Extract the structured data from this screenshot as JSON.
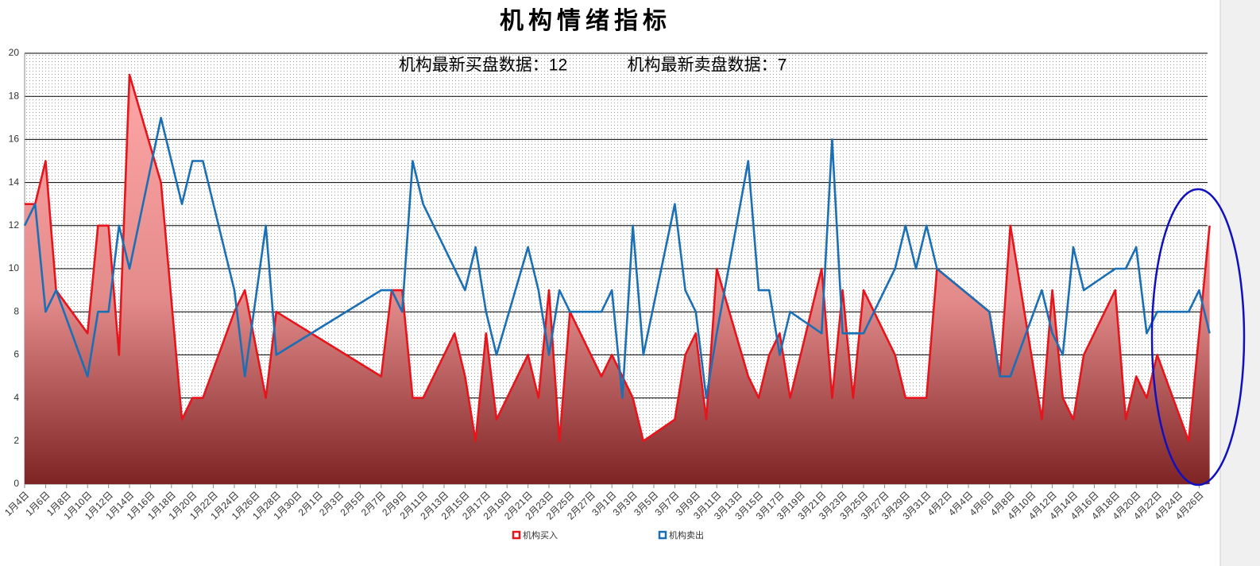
{
  "chart_data": {
    "type": "line",
    "title": "机构情绪指标",
    "annotations": [
      "机构最新买盘数据：12",
      "机构最新卖盘数据：7"
    ],
    "x": [
      "1月4日",
      "1月5日",
      "1月6日",
      "1月7日",
      "1月10日",
      "1月11日",
      "1月12日",
      "1月13日",
      "1月14日",
      "1月17日",
      "1月19日",
      "1月20日",
      "1月21日",
      "1月24日",
      "1月25日",
      "1月27日",
      "1月28日",
      "2月7日",
      "2月8日",
      "2月9日",
      "2月10日",
      "2月11日",
      "2月14日",
      "2月15日",
      "2月16日",
      "2月17日",
      "2月18日",
      "2月21日",
      "2月22日",
      "2月23日",
      "2月24日",
      "2月25日",
      "2月28日",
      "3月1日",
      "3月2日",
      "3月3日",
      "3月4日",
      "3月7日",
      "3月8日",
      "3月9日",
      "3月10日",
      "3月11日",
      "3月14日",
      "3月15日",
      "3月16日",
      "3月17日",
      "3月18日",
      "3月21日",
      "3月22日",
      "3月23日",
      "3月24日",
      "3月25日",
      "3月28日",
      "3月29日",
      "3月30日",
      "3月31日",
      "4月1日",
      "4月6日",
      "4月7日",
      "4月8日",
      "4月11日",
      "4月12日",
      "4月13日",
      "4月14日",
      "4月15日",
      "4月18日",
      "4月19日",
      "4月20日",
      "4月21日",
      "4月22日",
      "4月25日",
      "4月26日",
      "4月27日"
    ],
    "series": [
      {
        "name": "机构买入",
        "color": "#e8141b",
        "area": true,
        "values": [
          13,
          13,
          15,
          9,
          7,
          12,
          12,
          6,
          19,
          14,
          3,
          4,
          4,
          8,
          9,
          4,
          8,
          5,
          9,
          9,
          4,
          4,
          7,
          5,
          2,
          7,
          3,
          6,
          4,
          9,
          2,
          8,
          5,
          6,
          5,
          4,
          2,
          3,
          6,
          7,
          3,
          10,
          5,
          4,
          6,
          7,
          4,
          10,
          4,
          9,
          4,
          9,
          6,
          4,
          4,
          4,
          10,
          8,
          5,
          12,
          3,
          9,
          4,
          3,
          6,
          9,
          3,
          5,
          4,
          6,
          2,
          7,
          12
        ]
      },
      {
        "name": "机构卖出",
        "color": "#1a6fb5",
        "area": false,
        "values": [
          12,
          13,
          8,
          9,
          5,
          8,
          8,
          12,
          10,
          17,
          13,
          15,
          15,
          9,
          5,
          12,
          6,
          9,
          9,
          8,
          15,
          13,
          10,
          9,
          11,
          8,
          6,
          11,
          9,
          6,
          9,
          8,
          8,
          9,
          4,
          12,
          6,
          13,
          9,
          8,
          4,
          7,
          15,
          9,
          9,
          6,
          8,
          7,
          16,
          7,
          7,
          7,
          10,
          12,
          10,
          12,
          10,
          8,
          5,
          5,
          9,
          7,
          6,
          11,
          9,
          10,
          10,
          11,
          7,
          8,
          8,
          9,
          7
        ]
      }
    ],
    "xticks": [
      "1月4日",
      "1月6日",
      "1月8日",
      "1月10日",
      "1月12日",
      "1月14日",
      "1月16日",
      "1月18日",
      "1月20日",
      "1月22日",
      "1月24日",
      "1月26日",
      "1月28日",
      "1月30日",
      "2月1日",
      "2月3日",
      "2月5日",
      "2月7日",
      "2月9日",
      "2月11日",
      "2月13日",
      "2月15日",
      "2月17日",
      "2月19日",
      "2月21日",
      "2月23日",
      "2月25日",
      "2月27日",
      "3月1日",
      "3月3日",
      "3月5日",
      "3月7日",
      "3月9日",
      "3月11日",
      "3月13日",
      "3月15日",
      "3月17日",
      "3月19日",
      "3月21日",
      "3月23日",
      "3月25日",
      "3月27日",
      "3月29日",
      "3月31日",
      "4月2日",
      "4月4日",
      "4月6日",
      "4月8日",
      "4月10日",
      "4月12日",
      "4月14日",
      "4月16日",
      "4月18日",
      "4月20日",
      "4月22日",
      "4月24日",
      "4月26日"
    ],
    "ylim": [
      0,
      20
    ],
    "yticks": [
      0,
      2,
      4,
      6,
      8,
      10,
      12,
      14,
      16,
      18,
      20
    ],
    "grid": true,
    "legend": "bottom"
  }
}
